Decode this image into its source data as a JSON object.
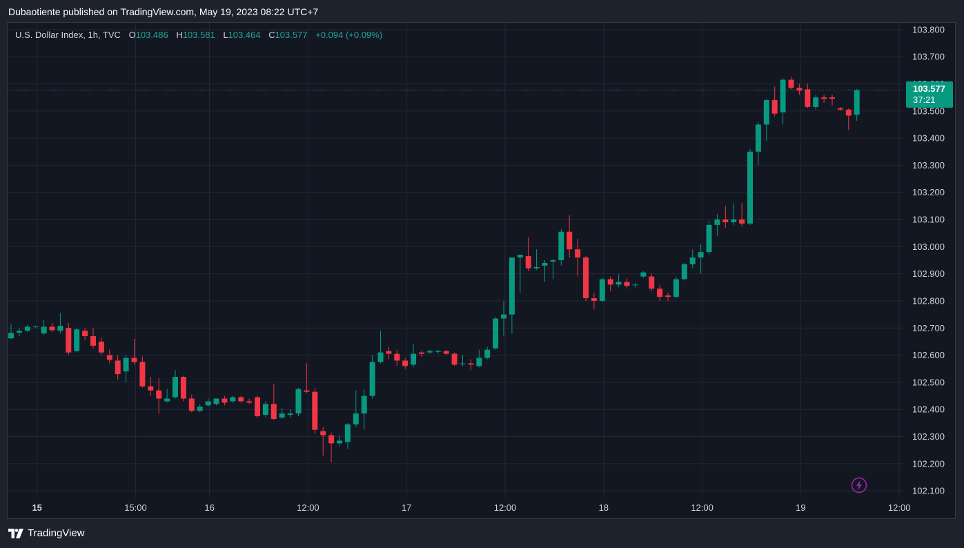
{
  "header": {
    "publish_text": "Dubaotiente published on TradingView.com, May 19, 2023 08:22 UTC+7"
  },
  "legend": {
    "symbol": "U.S. Dollar Index, 1h, TVC",
    "o_label": "O",
    "o_value": "103.486",
    "h_label": "H",
    "h_value": "103.581",
    "l_label": "L",
    "l_value": "103.464",
    "c_label": "C",
    "c_value": "103.577",
    "change": "+0.094 (+0.09%)"
  },
  "price_badge": {
    "price": "103.577",
    "countdown": "37:21"
  },
  "footer": {
    "brand": "TradingView"
  },
  "colors": {
    "up": "#089981",
    "down": "#f23645",
    "background": "#131722",
    "grid": "#242833",
    "text": "#d1d4dc"
  },
  "icons": {
    "logo": "tradingview-logo-icon",
    "replay": "lightning-bolt-icon"
  },
  "chart_data": {
    "type": "candlestick",
    "ylim": [
      102.075,
      103.825
    ],
    "y_ticks": [
      "103.800",
      "103.700",
      "103.600",
      "103.500",
      "103.400",
      "103.300",
      "103.200",
      "103.100",
      "103.000",
      "102.900",
      "102.800",
      "102.700",
      "102.600",
      "102.500",
      "102.400",
      "102.300",
      "102.200",
      "102.100"
    ],
    "x_ticks": [
      {
        "label": "15",
        "index": 3,
        "bold": true
      },
      {
        "label": "15:00",
        "index": 15,
        "bold": false
      },
      {
        "label": "16",
        "index": 24,
        "bold": false
      },
      {
        "label": "12:00",
        "index": 36,
        "bold": false
      },
      {
        "label": "17",
        "index": 48,
        "bold": false
      },
      {
        "label": "12:00",
        "index": 60,
        "bold": false
      },
      {
        "label": "18",
        "index": 72,
        "bold": false
      },
      {
        "label": "12:00",
        "index": 84,
        "bold": false
      },
      {
        "label": "19",
        "index": 96,
        "bold": false
      },
      {
        "label": "12:00",
        "index": 108,
        "bold": false
      }
    ],
    "last_price": 103.577,
    "candles": [
      [
        102.662,
        102.682,
        102.715,
        102.66
      ],
      [
        102.683,
        102.69,
        102.7,
        102.67
      ],
      [
        102.69,
        102.705,
        102.712,
        102.685
      ],
      [
        102.705,
        102.707,
        102.708,
        102.7
      ],
      [
        102.68,
        102.705,
        102.73,
        102.675
      ],
      [
        102.705,
        102.692,
        102.72,
        102.685
      ],
      [
        102.69,
        102.708,
        102.755,
        102.68
      ],
      [
        102.7,
        102.61,
        102.72,
        102.6
      ],
      [
        102.615,
        102.695,
        102.7,
        102.61
      ],
      [
        102.69,
        102.67,
        102.7,
        102.655
      ],
      [
        102.67,
        102.635,
        102.7,
        102.625
      ],
      [
        102.65,
        102.61,
        102.665,
        102.6
      ],
      [
        102.6,
        102.583,
        102.62,
        102.57
      ],
      [
        102.58,
        102.53,
        102.6,
        102.51
      ],
      [
        102.54,
        102.59,
        102.6,
        102.5
      ],
      [
        102.59,
        102.575,
        102.66,
        102.565
      ],
      [
        102.575,
        102.485,
        102.595,
        102.48
      ],
      [
        102.485,
        102.47,
        102.52,
        102.45
      ],
      [
        102.47,
        102.44,
        102.515,
        102.385
      ],
      [
        102.43,
        102.44,
        102.475,
        102.425
      ],
      [
        102.445,
        102.52,
        102.545,
        102.44
      ],
      [
        102.52,
        102.44,
        102.525,
        102.43
      ],
      [
        102.44,
        102.395,
        102.455,
        102.39
      ],
      [
        102.395,
        102.41,
        102.42,
        102.39
      ],
      [
        102.415,
        102.43,
        102.44,
        102.41
      ],
      [
        102.42,
        102.44,
        102.44,
        102.415
      ],
      [
        102.44,
        102.425,
        102.45,
        102.415
      ],
      [
        102.43,
        102.445,
        102.45,
        102.425
      ],
      [
        102.445,
        102.43,
        102.45,
        102.425
      ],
      [
        102.43,
        102.425,
        102.44,
        102.42
      ],
      [
        102.445,
        102.375,
        102.45,
        102.37
      ],
      [
        102.38,
        102.42,
        102.43,
        102.37
      ],
      [
        102.42,
        102.365,
        102.495,
        102.36
      ],
      [
        102.37,
        102.385,
        102.405,
        102.365
      ],
      [
        102.38,
        102.385,
        102.4,
        102.37
      ],
      [
        102.385,
        102.475,
        102.48,
        102.375
      ],
      [
        102.47,
        102.465,
        102.57,
        102.46
      ],
      [
        102.465,
        102.325,
        102.48,
        102.31
      ],
      [
        102.32,
        102.305,
        102.335,
        102.23
      ],
      [
        102.305,
        102.275,
        102.315,
        102.205
      ],
      [
        102.275,
        102.285,
        102.305,
        102.265
      ],
      [
        102.28,
        102.345,
        102.35,
        102.255
      ],
      [
        102.345,
        102.385,
        102.47,
        102.335
      ],
      [
        102.385,
        102.45,
        102.475,
        102.325
      ],
      [
        102.45,
        102.575,
        102.6,
        102.44
      ],
      [
        102.575,
        102.61,
        102.69,
        102.57
      ],
      [
        102.615,
        102.605,
        102.63,
        102.585
      ],
      [
        102.605,
        102.58,
        102.62,
        102.56
      ],
      [
        102.58,
        102.56,
        102.59,
        102.55
      ],
      [
        102.565,
        102.605,
        102.64,
        102.555
      ],
      [
        102.61,
        102.605,
        102.615,
        102.595
      ],
      [
        102.61,
        102.615,
        102.62,
        102.605
      ],
      [
        102.612,
        102.615,
        102.62,
        102.605
      ],
      [
        102.615,
        102.605,
        102.62,
        102.6
      ],
      [
        102.605,
        102.565,
        102.61,
        102.56
      ],
      [
        102.57,
        102.57,
        102.6,
        102.56
      ],
      [
        102.57,
        102.565,
        102.585,
        102.545
      ],
      [
        102.56,
        102.59,
        102.62,
        102.555
      ],
      [
        102.59,
        102.62,
        102.63,
        102.585
      ],
      [
        102.625,
        102.735,
        102.74,
        102.62
      ],
      [
        102.735,
        102.75,
        102.8,
        102.67
      ],
      [
        102.75,
        102.96,
        102.96,
        102.68
      ],
      [
        102.96,
        102.97,
        102.97,
        102.83
      ],
      [
        102.965,
        102.92,
        103.035,
        102.91
      ],
      [
        102.92,
        102.925,
        102.99,
        102.915
      ],
      [
        102.93,
        102.94,
        102.95,
        102.87
      ],
      [
        102.945,
        102.95,
        102.955,
        102.88
      ],
      [
        102.95,
        103.055,
        103.065,
        102.93
      ],
      [
        103.055,
        102.99,
        103.115,
        102.96
      ],
      [
        102.99,
        102.96,
        103.03,
        102.89
      ],
      [
        102.96,
        102.81,
        102.965,
        102.8
      ],
      [
        102.81,
        102.8,
        102.83,
        102.77
      ],
      [
        102.8,
        102.88,
        102.885,
        102.795
      ],
      [
        102.88,
        102.86,
        102.89,
        102.835
      ],
      [
        102.86,
        102.87,
        102.9,
        102.85
      ],
      [
        102.87,
        102.855,
        102.885,
        102.845
      ],
      [
        102.86,
        102.86,
        102.865,
        102.85
      ],
      [
        102.89,
        102.905,
        102.91,
        102.885
      ],
      [
        102.89,
        102.845,
        102.9,
        102.835
      ],
      [
        102.845,
        102.815,
        102.86,
        102.8
      ],
      [
        102.82,
        102.815,
        102.83,
        102.8
      ],
      [
        102.815,
        102.88,
        102.89,
        102.81
      ],
      [
        102.88,
        102.935,
        102.94,
        102.875
      ],
      [
        102.935,
        102.96,
        102.99,
        102.92
      ],
      [
        102.96,
        102.98,
        103.01,
        102.9
      ],
      [
        102.98,
        103.08,
        103.095,
        102.97
      ],
      [
        103.08,
        103.1,
        103.12,
        103.04
      ],
      [
        103.1,
        103.09,
        103.15,
        103.07
      ],
      [
        103.09,
        103.1,
        103.16,
        103.08
      ],
      [
        103.1,
        103.085,
        103.16,
        103.075
      ],
      [
        103.085,
        103.35,
        103.36,
        103.08
      ],
      [
        103.35,
        103.45,
        103.46,
        103.3
      ],
      [
        103.45,
        103.54,
        103.545,
        103.39
      ],
      [
        103.54,
        103.49,
        103.59,
        103.48
      ],
      [
        103.495,
        103.615,
        103.62,
        103.45
      ],
      [
        103.615,
        103.585,
        103.625,
        103.58
      ],
      [
        103.585,
        103.575,
        103.6,
        103.56
      ],
      [
        103.58,
        103.515,
        103.6,
        103.51
      ],
      [
        103.515,
        103.55,
        103.56,
        103.505
      ],
      [
        103.55,
        103.545,
        103.56,
        103.53
      ],
      [
        103.55,
        103.545,
        103.56,
        103.52
      ],
      [
        103.51,
        103.505,
        103.515,
        103.5
      ],
      [
        103.505,
        103.483,
        103.51,
        103.43
      ],
      [
        103.486,
        103.577,
        103.581,
        103.464
      ]
    ]
  }
}
